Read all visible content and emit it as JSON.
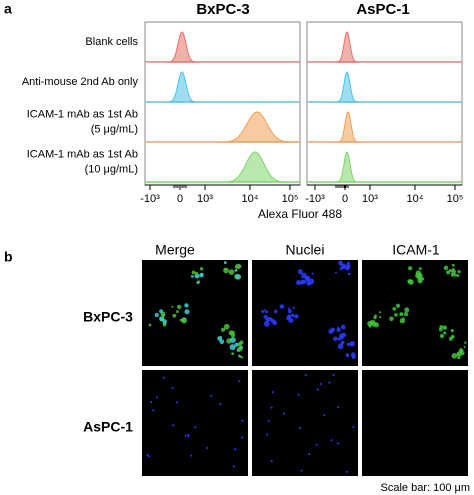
{
  "panel_a": {
    "label": "a",
    "columns": [
      "BxPC-3",
      "AsPC-1"
    ],
    "rows": [
      {
        "label": [
          "Blank cells"
        ],
        "color": "#e8706a"
      },
      {
        "label": [
          "Anti-mouse 2nd Ab only"
        ],
        "color": "#4cc3e6"
      },
      {
        "label": [
          "ICAM-1 mAb as 1st Ab",
          "(5 μg/mL)"
        ],
        "color": "#f0a055"
      },
      {
        "label": [
          "ICAM-1 mAb as 1st Ab",
          "(10 μg/mL)"
        ],
        "color": "#7ed66a"
      }
    ],
    "x_ticks": [
      "-10³",
      "0",
      "10³",
      "10⁴",
      "10⁵"
    ],
    "x_axis_label": "Alexa Fluor 488"
  },
  "panel_b": {
    "label": "b",
    "columns": [
      "Merge",
      "Nuclei",
      "ICAM-1"
    ],
    "rows": [
      "BxPC-3",
      "AsPC-1"
    ],
    "scale_bar": "Scale bar: 100 μm"
  }
}
